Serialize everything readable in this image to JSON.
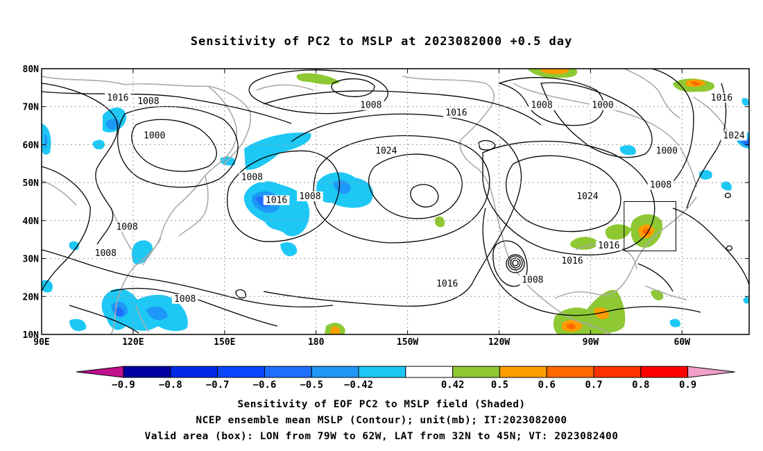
{
  "title": "Sensitivity of PC2 to MSLP at 2023082000 +0.5 day",
  "map": {
    "lat_labels": [
      "80N",
      "70N",
      "60N",
      "50N",
      "40N",
      "30N",
      "20N",
      "10N"
    ],
    "lon_labels": [
      "90E",
      "120E",
      "150E",
      "180",
      "150W",
      "120W",
      "90W",
      "60W"
    ],
    "lat_values": [
      80,
      70,
      60,
      50,
      40,
      30,
      20,
      10
    ],
    "lon_values": [
      90,
      120,
      150,
      180,
      210,
      240,
      270,
      300
    ],
    "extent": {
      "lon_min": 90,
      "lon_max": 322,
      "lat_min": 10,
      "lat_max": 80
    },
    "valid_box": {
      "lon_min": 281,
      "lon_max": 298,
      "lat_min": 32,
      "lat_max": 45
    },
    "contour_labels": [
      {
        "text": "1016",
        "lon": 115,
        "lat": 72
      },
      {
        "text": "1008",
        "lon": 125,
        "lat": 71
      },
      {
        "text": "1000",
        "lon": 127,
        "lat": 62
      },
      {
        "text": "1008",
        "lon": 159,
        "lat": 51
      },
      {
        "text": "1016",
        "lon": 167,
        "lat": 45
      },
      {
        "text": "1008",
        "lon": 178,
        "lat": 46
      },
      {
        "text": "1008",
        "lon": 118,
        "lat": 38
      },
      {
        "text": "1008",
        "lon": 111,
        "lat": 31
      },
      {
        "text": "1008",
        "lon": 137,
        "lat": 19
      },
      {
        "text": "1008",
        "lon": 198,
        "lat": 70
      },
      {
        "text": "1016",
        "lon": 226,
        "lat": 68
      },
      {
        "text": "1024",
        "lon": 203,
        "lat": 58
      },
      {
        "text": "1008",
        "lon": 254,
        "lat": 70
      },
      {
        "text": "1000",
        "lon": 274,
        "lat": 70
      },
      {
        "text": "1016",
        "lon": 313,
        "lat": 72
      },
      {
        "text": "1024",
        "lon": 317,
        "lat": 62
      },
      {
        "text": "1000",
        "lon": 295,
        "lat": 58
      },
      {
        "text": "1008",
        "lon": 293,
        "lat": 49
      },
      {
        "text": "1024",
        "lon": 269,
        "lat": 46
      },
      {
        "text": "1016",
        "lon": 276,
        "lat": 33
      },
      {
        "text": "1016",
        "lon": 264,
        "lat": 29
      },
      {
        "text": "1008",
        "lon": 251,
        "lat": 24
      },
      {
        "text": "1016",
        "lon": 223,
        "lat": 23
      }
    ]
  },
  "colorbar": {
    "labels": [
      "−0.9",
      "−0.8",
      "−0.7",
      "−0.6",
      "−0.5",
      "−0.42",
      "0.42",
      "0.5",
      "0.6",
      "0.7",
      "0.8",
      "0.9"
    ],
    "colors": [
      "#0000a0",
      "#0028e6",
      "#0a46ff",
      "#1f6fff",
      "#1d98f8",
      "#1ec8f5",
      "#ffffff",
      "#8ec832",
      "#ff9e00",
      "#ff6a00",
      "#ff3200",
      "#ff0000"
    ],
    "low_extend_color": "#c0108c",
    "high_extend_color": "#f0a0c8"
  },
  "captions": [
    "Sensitivity of EOF PC2 to MSLP field (Shaded)",
    "NCEP ensemble mean MSLP (Contour); unit(mb); IT:2023082000",
    "Valid area (box): LON from 79W to 62W, LAT from 32N to 45N; VT: 2023082400"
  ]
}
